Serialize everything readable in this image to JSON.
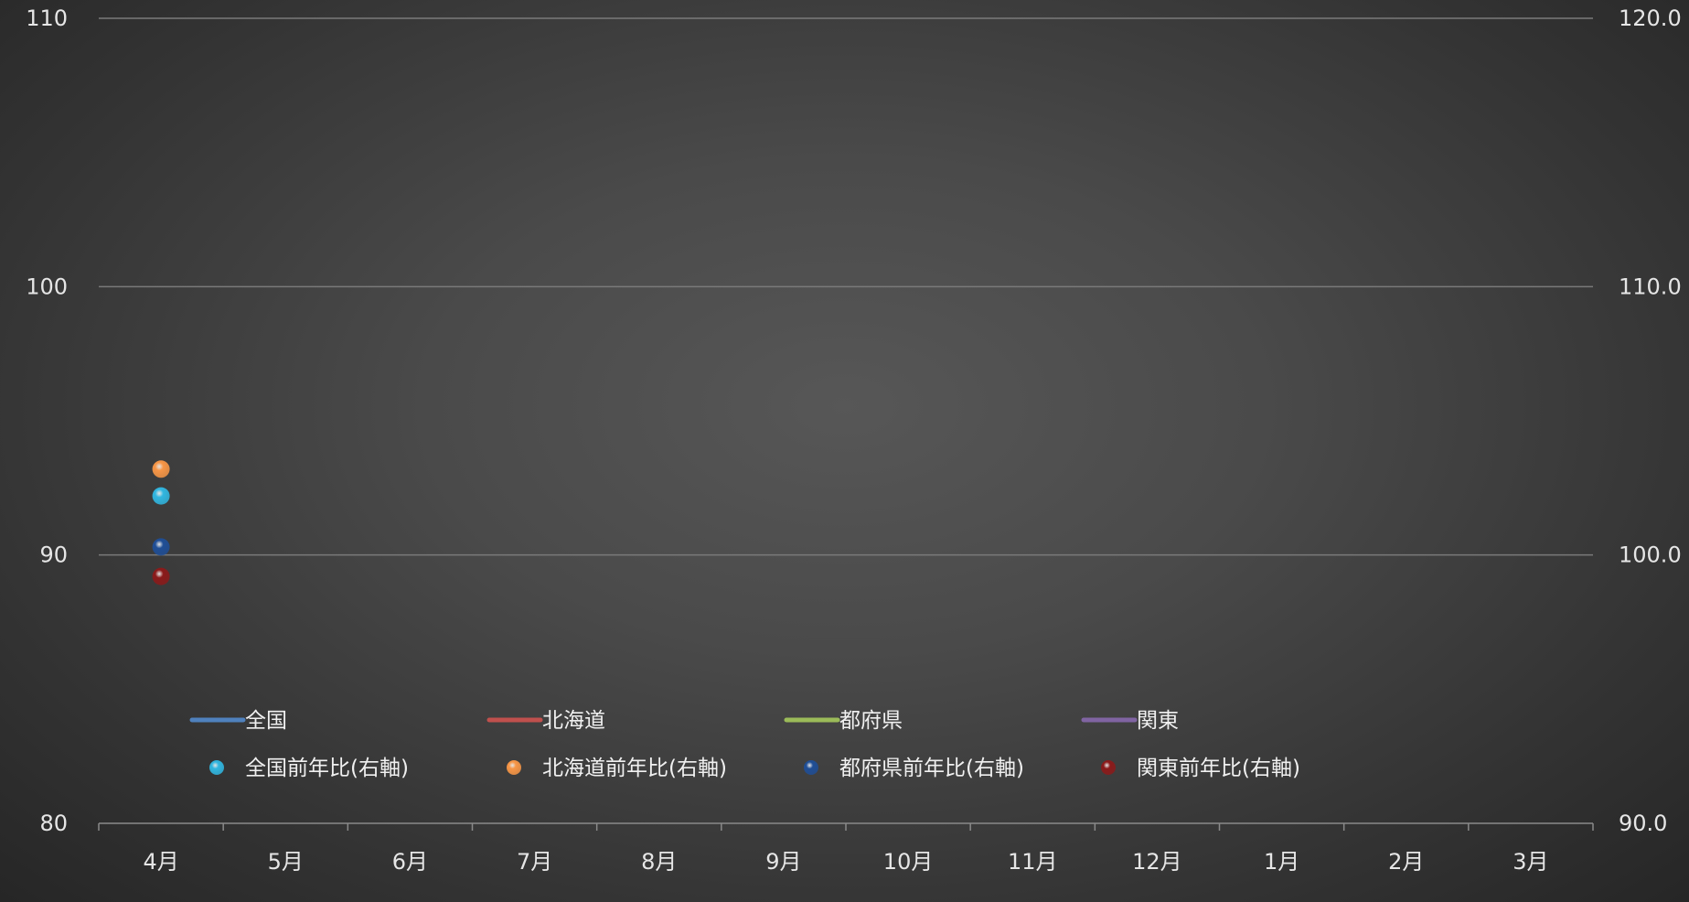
{
  "chart_data": {
    "type": "line",
    "categories": [
      "4月",
      "5月",
      "6月",
      "7月",
      "8月",
      "9月",
      "10月",
      "11月",
      "12月",
      "1月",
      "2月",
      "3月"
    ],
    "y_left": {
      "ylim": [
        80,
        110
      ],
      "ticks": [
        "80",
        "90",
        "100",
        "110"
      ],
      "tick_values": [
        80,
        90,
        100,
        110
      ]
    },
    "y_right": {
      "ylim": [
        90.0,
        120.0
      ],
      "ticks": [
        "90.0",
        "100.0",
        "110.0",
        "120.0"
      ],
      "tick_values": [
        90,
        100,
        110,
        120
      ]
    },
    "grid": true,
    "legend_position": "bottom",
    "series": [
      {
        "name": "全国",
        "kind": "line",
        "axis": "left",
        "color": "#4f81bd",
        "values": [
          null,
          null,
          null,
          null,
          null,
          null,
          null,
          null,
          null,
          null,
          null,
          null
        ]
      },
      {
        "name": "北海道",
        "kind": "line",
        "axis": "left",
        "color": "#c0504d",
        "values": [
          null,
          null,
          null,
          null,
          null,
          null,
          null,
          null,
          null,
          null,
          null,
          null
        ]
      },
      {
        "name": "都府県",
        "kind": "line",
        "axis": "left",
        "color": "#9bbb59",
        "values": [
          null,
          null,
          null,
          null,
          null,
          null,
          null,
          null,
          null,
          null,
          null,
          null
        ]
      },
      {
        "name": "関東",
        "kind": "line",
        "axis": "left",
        "color": "#8064a2",
        "values": [
          null,
          null,
          null,
          null,
          null,
          null,
          null,
          null,
          null,
          null,
          null,
          null
        ]
      },
      {
        "name": "全国前年比(右軸)",
        "kind": "marker",
        "axis": "right",
        "color": "#31b6e0",
        "values": [
          102.2,
          null,
          null,
          null,
          null,
          null,
          null,
          null,
          null,
          null,
          null,
          null
        ]
      },
      {
        "name": "北海道前年比(右軸)",
        "kind": "marker",
        "axis": "right",
        "color": "#f79646",
        "values": [
          103.2,
          null,
          null,
          null,
          null,
          null,
          null,
          null,
          null,
          null,
          null,
          null
        ]
      },
      {
        "name": "都府県前年比(右軸)",
        "kind": "marker",
        "axis": "right",
        "color": "#1f4e96",
        "values": [
          100.3,
          null,
          null,
          null,
          null,
          null,
          null,
          null,
          null,
          null,
          null,
          null
        ]
      },
      {
        "name": "関東前年比(右軸)",
        "kind": "marker",
        "axis": "right",
        "color": "#8b1a1a",
        "values": [
          99.2,
          null,
          null,
          null,
          null,
          null,
          null,
          null,
          null,
          null,
          null,
          null
        ]
      }
    ]
  }
}
